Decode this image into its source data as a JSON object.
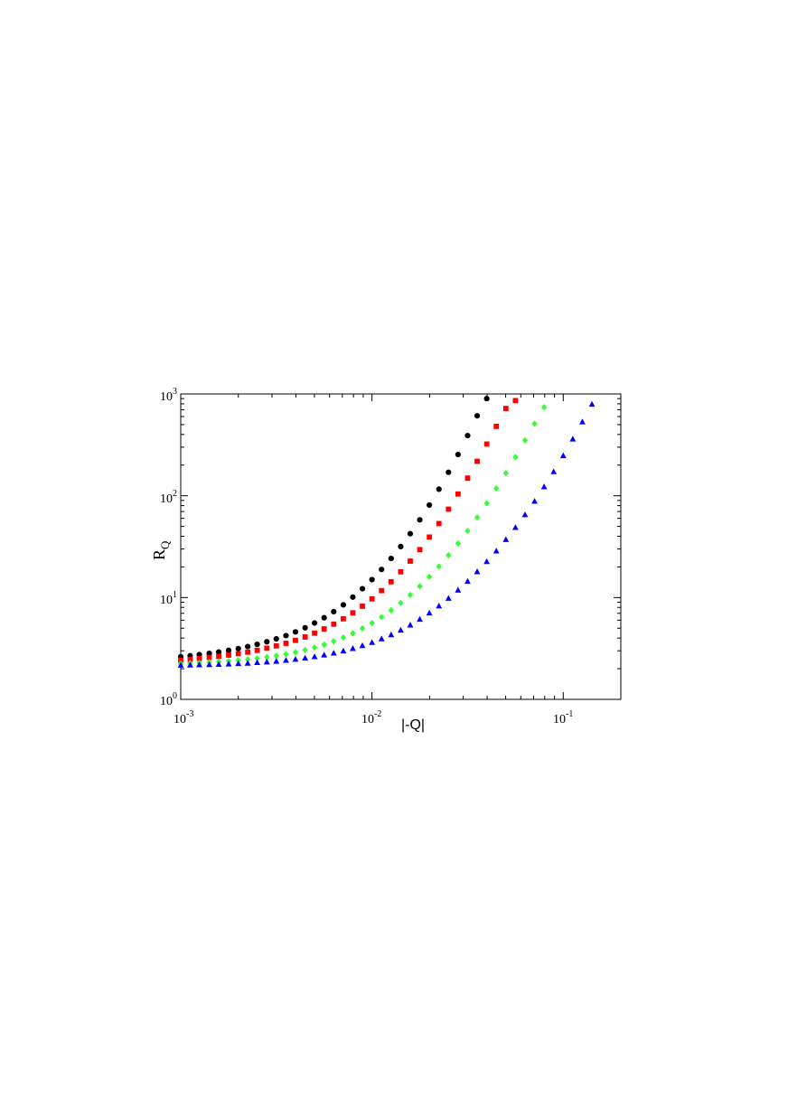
{
  "chart_data": {
    "type": "scatter",
    "x_scale": "log",
    "y_scale": "log",
    "xlim": [
      0.001,
      0.2
    ],
    "ylim": [
      1,
      1000
    ],
    "xlabel": "|-Q|",
    "ylabel": {
      "main": "R",
      "sub": "Q"
    },
    "x_ticks": [
      {
        "base": "10",
        "exp": "-3",
        "value": 0.001
      },
      {
        "base": "10",
        "exp": "-2",
        "value": 0.01
      },
      {
        "base": "10",
        "exp": "-1",
        "value": 0.1
      }
    ],
    "y_ticks": [
      {
        "base": "10",
        "exp": "0",
        "value": 1
      },
      {
        "base": "10",
        "exp": "1",
        "value": 10
      },
      {
        "base": "10",
        "exp": "2",
        "value": 100
      },
      {
        "base": "10",
        "exp": "3",
        "value": 1000
      }
    ],
    "grid": false,
    "legend": "none",
    "series": [
      {
        "color": "#000000",
        "marker": "circle",
        "points": [
          [
            0.001,
            2.62
          ],
          [
            0.00112,
            2.68
          ],
          [
            0.00125,
            2.75
          ],
          [
            0.00141,
            2.83
          ],
          [
            0.00158,
            2.92
          ],
          [
            0.00178,
            3.03
          ],
          [
            0.002,
            3.15
          ],
          [
            0.00224,
            3.3
          ],
          [
            0.00251,
            3.47
          ],
          [
            0.00282,
            3.68
          ],
          [
            0.00316,
            3.93
          ],
          [
            0.00355,
            4.23
          ],
          [
            0.00398,
            4.6
          ],
          [
            0.00447,
            5.05
          ],
          [
            0.00501,
            5.62
          ],
          [
            0.00562,
            6.34
          ],
          [
            0.00631,
            7.27
          ],
          [
            0.00708,
            8.48
          ],
          [
            0.00794,
            10.1
          ],
          [
            0.00891,
            12.2
          ],
          [
            0.01,
            15.0
          ],
          [
            0.01122,
            18.9
          ],
          [
            0.01259,
            24.2
          ],
          [
            0.01413,
            31.7
          ],
          [
            0.01585,
            42.4
          ],
          [
            0.01778,
            58.0
          ],
          [
            0.01995,
            81.0
          ],
          [
            0.02239,
            116
          ],
          [
            0.02512,
            170
          ],
          [
            0.02818,
            254
          ],
          [
            0.03162,
            390
          ],
          [
            0.03548,
            610
          ],
          [
            0.03981,
            900
          ]
        ]
      },
      {
        "color": "#ff0000",
        "marker": "square",
        "points": [
          [
            0.001,
            2.43
          ],
          [
            0.00112,
            2.47
          ],
          [
            0.00125,
            2.52
          ],
          [
            0.00141,
            2.58
          ],
          [
            0.00158,
            2.64
          ],
          [
            0.00178,
            2.72
          ],
          [
            0.002,
            2.81
          ],
          [
            0.00224,
            2.91
          ],
          [
            0.00251,
            3.03
          ],
          [
            0.00282,
            3.18
          ],
          [
            0.00316,
            3.35
          ],
          [
            0.00355,
            3.55
          ],
          [
            0.00398,
            3.8
          ],
          [
            0.00447,
            4.1
          ],
          [
            0.00501,
            4.47
          ],
          [
            0.00562,
            4.92
          ],
          [
            0.00631,
            5.48
          ],
          [
            0.00708,
            6.18
          ],
          [
            0.00794,
            7.08
          ],
          [
            0.00891,
            8.22
          ],
          [
            0.01,
            9.7
          ],
          [
            0.01122,
            11.7
          ],
          [
            0.01259,
            14.3
          ],
          [
            0.01413,
            17.9
          ],
          [
            0.01585,
            22.8
          ],
          [
            0.01778,
            29.6
          ],
          [
            0.01995,
            39.3
          ],
          [
            0.02239,
            53.3
          ],
          [
            0.02512,
            73.8
          ],
          [
            0.02818,
            104
          ],
          [
            0.03162,
            149
          ],
          [
            0.03548,
            218
          ],
          [
            0.03981,
            322
          ],
          [
            0.04467,
            480
          ],
          [
            0.05012,
            720
          ],
          [
            0.05623,
            860
          ]
        ]
      },
      {
        "color": "#33ff33",
        "marker": "diamond",
        "points": [
          [
            0.001,
            2.24
          ],
          [
            0.00112,
            2.26
          ],
          [
            0.00125,
            2.28
          ],
          [
            0.00141,
            2.31
          ],
          [
            0.00158,
            2.34
          ],
          [
            0.00178,
            2.38
          ],
          [
            0.002,
            2.42
          ],
          [
            0.00224,
            2.47
          ],
          [
            0.00251,
            2.53
          ],
          [
            0.00282,
            2.6
          ],
          [
            0.00316,
            2.68
          ],
          [
            0.00355,
            2.78
          ],
          [
            0.00398,
            2.9
          ],
          [
            0.00447,
            3.05
          ],
          [
            0.00501,
            3.23
          ],
          [
            0.00562,
            3.45
          ],
          [
            0.00631,
            3.72
          ],
          [
            0.00708,
            4.05
          ],
          [
            0.00794,
            4.46
          ],
          [
            0.00891,
            4.98
          ],
          [
            0.01,
            5.62
          ],
          [
            0.01122,
            6.45
          ],
          [
            0.01259,
            7.5
          ],
          [
            0.01413,
            8.85
          ],
          [
            0.01585,
            10.6
          ],
          [
            0.01778,
            12.9
          ],
          [
            0.01995,
            16.0
          ],
          [
            0.02239,
            20.2
          ],
          [
            0.02512,
            26.0
          ],
          [
            0.02818,
            34.0
          ],
          [
            0.03162,
            45.2
          ],
          [
            0.03548,
            61.2
          ],
          [
            0.03981,
            84.2
          ],
          [
            0.04467,
            118
          ],
          [
            0.05012,
            167
          ],
          [
            0.05623,
            240
          ],
          [
            0.0631,
            350
          ],
          [
            0.07079,
            510
          ],
          [
            0.07943,
            740
          ]
        ]
      },
      {
        "color": "#0000ff",
        "marker": "triangle",
        "points": [
          [
            0.001,
            2.16
          ],
          [
            0.00112,
            2.17
          ],
          [
            0.00125,
            2.18
          ],
          [
            0.00141,
            2.19
          ],
          [
            0.00158,
            2.2
          ],
          [
            0.00178,
            2.22
          ],
          [
            0.002,
            2.24
          ],
          [
            0.00224,
            2.26
          ],
          [
            0.00251,
            2.29
          ],
          [
            0.00282,
            2.32
          ],
          [
            0.00316,
            2.36
          ],
          [
            0.00355,
            2.41
          ],
          [
            0.00398,
            2.47
          ],
          [
            0.00447,
            2.54
          ],
          [
            0.00501,
            2.62
          ],
          [
            0.00562,
            2.72
          ],
          [
            0.00631,
            2.84
          ],
          [
            0.00708,
            2.98
          ],
          [
            0.00794,
            3.15
          ],
          [
            0.00891,
            3.36
          ],
          [
            0.01,
            3.61
          ],
          [
            0.01122,
            3.92
          ],
          [
            0.01259,
            4.3
          ],
          [
            0.01413,
            4.77
          ],
          [
            0.01585,
            5.36
          ],
          [
            0.01778,
            6.1
          ],
          [
            0.01995,
            7.04
          ],
          [
            0.02239,
            8.25
          ],
          [
            0.02512,
            9.8
          ],
          [
            0.02818,
            11.8
          ],
          [
            0.03162,
            14.4
          ],
          [
            0.03548,
            17.9
          ],
          [
            0.03981,
            22.5
          ],
          [
            0.04467,
            28.6
          ],
          [
            0.05012,
            37.0
          ],
          [
            0.05623,
            48.7
          ],
          [
            0.0631,
            65.0
          ],
          [
            0.07079,
            88.0
          ],
          [
            0.07943,
            122
          ],
          [
            0.08913,
            172
          ],
          [
            0.1,
            247
          ],
          [
            0.1122,
            360
          ],
          [
            0.12589,
            530
          ],
          [
            0.14125,
            790
          ]
        ]
      }
    ]
  }
}
